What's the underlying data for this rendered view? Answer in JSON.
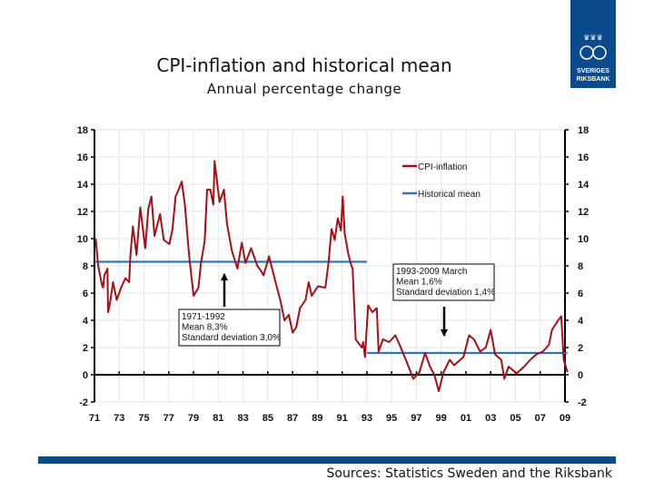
{
  "title": "CPI-inflation and historical mean",
  "subtitle": "Annual percentage change",
  "logo": {
    "text": "SVERIGES RIKSBANK",
    "color": "#0b4a8b"
  },
  "footer": {
    "sources": "Sources: Statistics Sweden and the Riksbank"
  },
  "chart_data": {
    "type": "line",
    "xlim": [
      1971,
      2009
    ],
    "ylim": [
      -2,
      18
    ],
    "xticks": [
      "71",
      "73",
      "75",
      "77",
      "79",
      "81",
      "83",
      "85",
      "87",
      "89",
      "91",
      "93",
      "95",
      "97",
      "99",
      "01",
      "03",
      "05",
      "07",
      "09"
    ],
    "yticks": [
      "-2",
      "0",
      "2",
      "4",
      "6",
      "8",
      "10",
      "12",
      "14",
      "16",
      "18"
    ],
    "grid": true,
    "legend_position": "top-right",
    "series": [
      {
        "name": "CPI-inflation",
        "color": "#a50f15",
        "x": [
          1971.1,
          1971.3,
          1971.6,
          1971.7,
          1971.8,
          1972.05,
          1972.1,
          1972.3,
          1972.5,
          1972.8,
          1973.15,
          1973.5,
          1973.8,
          1973.9,
          1974.1,
          1974.4,
          1974.7,
          1975.1,
          1975.35,
          1975.6,
          1975.85,
          1976.1,
          1976.3,
          1976.6,
          1977.05,
          1977.3,
          1977.55,
          1977.8,
          1978.05,
          1978.3,
          1978.65,
          1979.0,
          1979.4,
          1979.6,
          1979.9,
          1980.1,
          1980.35,
          1980.6,
          1980.7,
          1980.95,
          1981.1,
          1981.45,
          1981.7,
          1982.1,
          1982.55,
          1982.9,
          1983.2,
          1983.65,
          1984.15,
          1984.4,
          1984.65,
          1985.1,
          1985.6,
          1986.0,
          1986.35,
          1986.7,
          1987.0,
          1987.3,
          1987.6,
          1988.05,
          1988.3,
          1988.55,
          1989.05,
          1989.65,
          1989.9,
          1990.15,
          1990.4,
          1990.65,
          1990.9,
          1991.05,
          1991.2,
          1991.5,
          1991.75,
          1991.85,
          1992.1,
          1992.6,
          1992.7,
          1992.85,
          1993.1,
          1993.45,
          1993.8,
          1993.95,
          1994.3,
          1994.8,
          1995.3,
          1995.65,
          1996.15,
          1996.75,
          1997.25,
          1997.7,
          1998.1,
          1998.45,
          1998.8,
          1999.2,
          1999.7,
          2000.05,
          2000.8,
          2001.25,
          2001.65,
          2002.15,
          2002.6,
          2003.0,
          2003.35,
          2003.85,
          2004.1,
          2004.45,
          2005.1,
          2005.7,
          2006.2,
          2006.7,
          2007.2,
          2007.7,
          2007.95,
          2008.45,
          2008.7,
          2008.9,
          2009.2
        ],
        "y": [
          10.0,
          8.0,
          6.6,
          6.4,
          7.3,
          7.8,
          4.6,
          5.5,
          6.8,
          5.5,
          6.4,
          7.1,
          6.8,
          8.7,
          10.9,
          8.8,
          12.3,
          9.3,
          12.2,
          13.1,
          10.2,
          11.1,
          11.8,
          9.9,
          9.6,
          10.7,
          13.1,
          13.6,
          14.2,
          12.5,
          8.7,
          5.8,
          6.4,
          8.2,
          9.8,
          13.6,
          13.6,
          12.5,
          15.7,
          13.8,
          12.7,
          13.6,
          11.1,
          9.1,
          7.8,
          9.7,
          8.2,
          9.3,
          8.0,
          7.7,
          7.3,
          8.7,
          6.9,
          5.5,
          4.0,
          4.4,
          3.1,
          3.5,
          4.9,
          5.5,
          6.8,
          5.8,
          6.5,
          6.4,
          8.2,
          10.7,
          9.9,
          11.5,
          10.6,
          13.1,
          10.4,
          8.9,
          8.0,
          7.8,
          2.6,
          2.0,
          2.4,
          1.3,
          5.1,
          4.6,
          4.9,
          1.7,
          2.6,
          2.4,
          2.9,
          2.2,
          1.1,
          -0.3,
          0.2,
          1.6,
          0.6,
          0.0,
          -1.2,
          0.2,
          1.1,
          0.7,
          1.3,
          2.9,
          2.6,
          1.7,
          2.0,
          3.3,
          1.5,
          1.1,
          -0.3,
          0.6,
          0.1,
          0.6,
          1.1,
          1.5,
          1.7,
          2.2,
          3.3,
          4.0,
          4.3,
          1.1,
          0.2
        ]
      },
      {
        "name": "Historical mean",
        "color": "#2e75b6",
        "segments": [
          {
            "x": [
              1971,
              1993
            ],
            "y": 8.3
          },
          {
            "x": [
              1993,
              2009.2
            ],
            "y": 1.6
          }
        ]
      }
    ],
    "annotations": [
      {
        "lines": [
          "1971-1992",
          "Mean 8,3%",
          "Standard deviation 3,0%"
        ],
        "arrow": "up"
      },
      {
        "lines": [
          "1993-2009 March",
          "Mean 1,6%",
          "Standard deviation 1,4%"
        ],
        "arrow": "down"
      }
    ]
  }
}
